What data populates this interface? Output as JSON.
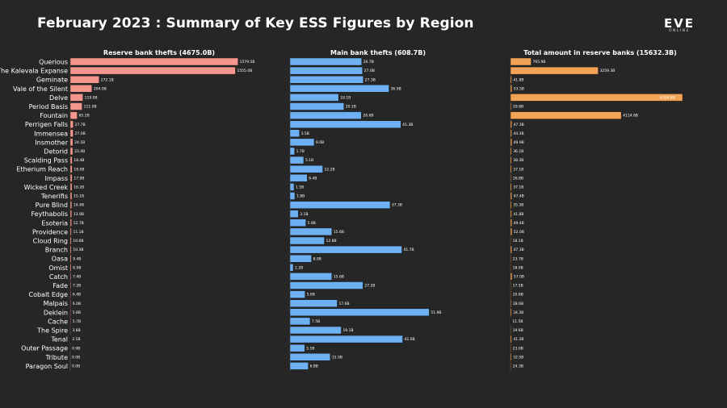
{
  "title": "February 2023 : Summary of Key ESS Figures by Region",
  "logo": {
    "main": "EVE",
    "sub": "ONLINE"
  },
  "colors": {
    "background": "#262626",
    "reserve": "#f4968c",
    "main": "#6eb1f2",
    "total": "#f2a356"
  },
  "chart_data": {
    "type": "bar",
    "orientation": "horizontal",
    "categories": [
      "Querious",
      "The Kalevala Expanse",
      "Geminate",
      "Vale of the Silent",
      "Delve",
      "Period Basis",
      "Fountain",
      "Perrigen Falls",
      "Immensea",
      "Insmother",
      "Detorid",
      "Scalding Pass",
      "Etherium Reach",
      "Impass",
      "Wicked Creek",
      "Tenerifis",
      "Pure Blind",
      "Feythabolis",
      "Esoteria",
      "Providence",
      "Cloud Ring",
      "Branch",
      "Oasa",
      "Omist",
      "Catch",
      "Fade",
      "Cobalt Edge",
      "Malpais",
      "Deklein",
      "Cache",
      "The Spire",
      "Tenal",
      "Outer Passage",
      "Tribute",
      "Paragon Soul"
    ],
    "panels": [
      {
        "title": "Reserve bank thefts (4675.0B)",
        "color": "#f4968c",
        "xlim": [
          0,
          1620
        ],
        "values": [
          1579.5,
          1555.0,
          272.1,
          204.0,
          119.0,
          111.0,
          65.2,
          27.7,
          27.0,
          24.1,
          23.4,
          18.4,
          18.0,
          17.9,
          16.2,
          15.1,
          14.4,
          13.9,
          12.7,
          11.1,
          10.6,
          10.3,
          9.4,
          8.9,
          7.4,
          7.2,
          6.4,
          6.0,
          5.8,
          5.7,
          3.8,
          2.5,
          0.9,
          0.0,
          0.0
        ],
        "labels": [
          "1579.5B",
          "1555.0B",
          "272.1B",
          "204.0B",
          "119.0B",
          "111.0B",
          "65.2B",
          "27.7B",
          "27.0B",
          "24.1B",
          "23.4B",
          "18.4B",
          "18.0B",
          "17.9B",
          "16.2B",
          "15.1B",
          "14.4B",
          "13.9B",
          "12.7B",
          "11.1B",
          "10.6B",
          "10.3B",
          "9.4B",
          "8.9B",
          "7.4B",
          "7.2B",
          "6.4B",
          "6.0B",
          "5.8B",
          "5.7B",
          "3.8B",
          "2.5B",
          "0.9B",
          "0.0B",
          "0.0B"
        ]
      },
      {
        "title": "Main bank thefts (608.7B)",
        "color": "#6eb1f2",
        "xlim": [
          0,
          56
        ],
        "values": [
          26.7,
          27.0,
          27.3,
          36.9,
          18.1,
          20.1,
          26.6,
          41.3,
          3.5,
          9.0,
          1.7,
          5.1,
          12.2,
          6.4,
          1.5,
          1.8,
          37.3,
          3.1,
          5.9,
          15.6,
          12.8,
          41.7,
          8.0,
          1.2,
          15.6,
          27.2,
          5.6,
          17.6,
          51.9,
          7.5,
          19.1,
          42.0,
          5.5,
          15.0,
          6.8
        ],
        "labels": [
          "26.7B",
          "27.0B",
          "27.3B",
          "36.9B",
          "18.1B",
          "20.1B",
          "26.6B",
          "41.3B",
          "3.5B",
          "9.0B",
          "1.7B",
          "5.1B",
          "12.2B",
          "6.4B",
          "1.5B",
          "1.8B",
          "37.3B",
          "3.1B",
          "5.9B",
          "15.6B",
          "12.8B",
          "41.7B",
          "8.0B",
          "1.2B",
          "15.6B",
          "27.2B",
          "5.6B",
          "17.6B",
          "51.9B",
          "7.5B",
          "19.1B",
          "42.0B",
          "5.5B",
          "15.0B",
          "6.8B"
        ]
      },
      {
        "title": "Total amount in reserve banks (15632.3B)",
        "color": "#f2a356",
        "xlim": [
          0,
          6394
        ],
        "values": [
          765.9,
          3259.3,
          41.8,
          53.5,
          6394.8,
          29.8,
          4114.6,
          47.3,
          44.3,
          49.9,
          36.1,
          38.3,
          37.1,
          26.8,
          37.1,
          47.4,
          35.3,
          41.8,
          49.4,
          52.0,
          18.1,
          47.3,
          23.7,
          18.0,
          57.0,
          17.5,
          20.6,
          28.6,
          34.3,
          11.5,
          19.6,
          41.2,
          23.0,
          32.5,
          24.3
        ],
        "labels": [
          "765.9B",
          "3259.3B",
          "41.8B",
          "53.5B",
          "6394.8B",
          "29.8B",
          "4114.6B",
          "47.3B",
          "44.3B",
          "49.9B",
          "36.1B",
          "38.3B",
          "37.1B",
          "26.8B",
          "37.1B",
          "47.4B",
          "35.3B",
          "41.8B",
          "49.4B",
          "52.0B",
          "18.1B",
          "47.3B",
          "23.7B",
          "18.0B",
          "57.0B",
          "17.5B",
          "20.6B",
          "28.6B",
          "34.3B",
          "11.5B",
          "19.6B",
          "41.2B",
          "23.0B",
          "32.5B",
          "24.3B"
        ]
      }
    ]
  }
}
